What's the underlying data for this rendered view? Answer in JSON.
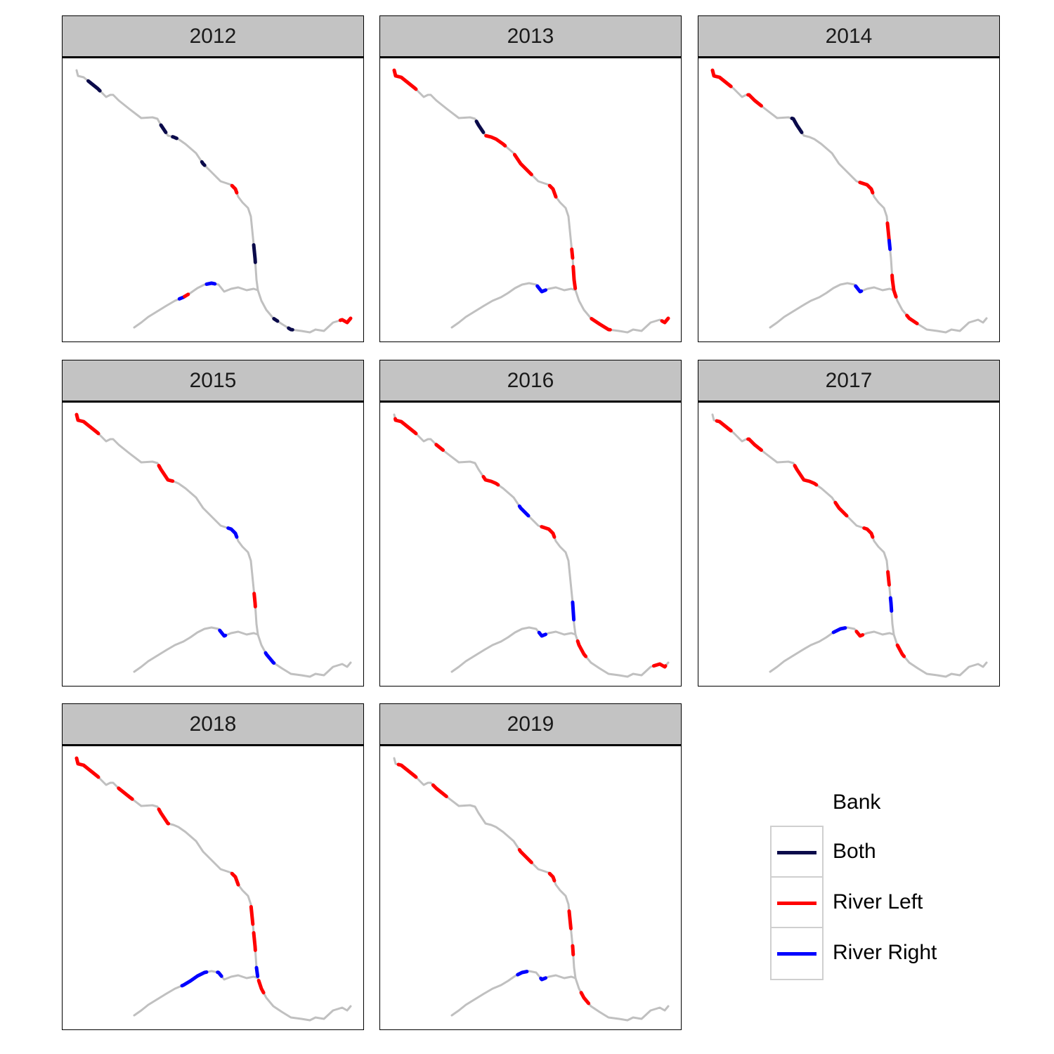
{
  "chart_data": {
    "type": "line",
    "description_of_encoding": "",
    "facets": [
      {
        "year": "2012",
        "segments": [
          {
            "reach": "main",
            "start": 0.04,
            "end": 0.075,
            "bank": "Both"
          },
          {
            "reach": "main",
            "start": 0.25,
            "end": 0.27,
            "bank": "Both"
          },
          {
            "reach": "main",
            "start": 0.29,
            "end": 0.3,
            "bank": "Both"
          },
          {
            "reach": "main",
            "start": 0.38,
            "end": 0.39,
            "bank": "Both"
          },
          {
            "reach": "main",
            "start": 0.47,
            "end": 0.49,
            "bank": "River Left"
          },
          {
            "reach": "main",
            "start": 0.62,
            "end": 0.66,
            "bank": "Both"
          },
          {
            "reach": "main",
            "start": 0.8,
            "end": 0.81,
            "bank": "Both"
          },
          {
            "reach": "main",
            "start": 0.84,
            "end": 0.85,
            "bank": "Both"
          },
          {
            "reach": "main",
            "start": 0.97,
            "end": 1.0,
            "bank": "River Left"
          },
          {
            "reach": "trib",
            "start": 0.38,
            "end": 0.42,
            "bank": "River Right"
          },
          {
            "reach": "trib",
            "start": 0.42,
            "end": 0.45,
            "bank": "River Left"
          },
          {
            "reach": "trib",
            "start": 0.6,
            "end": 0.66,
            "bank": "River Right"
          }
        ]
      },
      {
        "year": "2013",
        "segments": [
          {
            "reach": "main",
            "start": 0.0,
            "end": 0.07,
            "bank": "River Left"
          },
          {
            "reach": "main",
            "start": 0.24,
            "end": 0.27,
            "bank": "Both"
          },
          {
            "reach": "main",
            "start": 0.28,
            "end": 0.33,
            "bank": "River Left"
          },
          {
            "reach": "main",
            "start": 0.36,
            "end": 0.42,
            "bank": "River Left"
          },
          {
            "reach": "main",
            "start": 0.47,
            "end": 0.5,
            "bank": "River Left"
          },
          {
            "reach": "main",
            "start": 0.63,
            "end": 0.65,
            "bank": "River Left"
          },
          {
            "reach": "main",
            "start": 0.67,
            "end": 0.72,
            "bank": "River Left"
          },
          {
            "reach": "main",
            "start": 0.8,
            "end": 0.85,
            "bank": "River Left"
          },
          {
            "reach": "main",
            "start": 0.98,
            "end": 1.0,
            "bank": "River Left"
          },
          {
            "reach": "trib",
            "start": 0.7,
            "end": 0.78,
            "bank": "River Right"
          }
        ]
      },
      {
        "year": "2014",
        "segments": [
          {
            "reach": "main",
            "start": 0.0,
            "end": 0.06,
            "bank": "River Left"
          },
          {
            "reach": "main",
            "start": 0.11,
            "end": 0.15,
            "bank": "River Left"
          },
          {
            "reach": "main",
            "start": 0.23,
            "end": 0.27,
            "bank": "Both"
          },
          {
            "reach": "main",
            "start": 0.45,
            "end": 0.49,
            "bank": "River Left"
          },
          {
            "reach": "main",
            "start": 0.57,
            "end": 0.61,
            "bank": "River Left"
          },
          {
            "reach": "main",
            "start": 0.61,
            "end": 0.63,
            "bank": "River Right"
          },
          {
            "reach": "main",
            "start": 0.69,
            "end": 0.74,
            "bank": "River Left"
          },
          {
            "reach": "main",
            "start": 0.79,
            "end": 0.82,
            "bank": "River Left"
          },
          {
            "reach": "trib",
            "start": 0.7,
            "end": 0.76,
            "bank": "River Right"
          }
        ]
      },
      {
        "year": "2015",
        "segments": [
          {
            "reach": "main",
            "start": 0.0,
            "end": 0.07,
            "bank": "River Left"
          },
          {
            "reach": "main",
            "start": 0.24,
            "end": 0.29,
            "bank": "River Left"
          },
          {
            "reach": "main",
            "start": 0.46,
            "end": 0.49,
            "bank": "River Right"
          },
          {
            "reach": "main",
            "start": 0.63,
            "end": 0.66,
            "bank": "River Left"
          },
          {
            "reach": "main",
            "start": 0.77,
            "end": 0.8,
            "bank": "River Right"
          },
          {
            "reach": "trib",
            "start": 0.7,
            "end": 0.76,
            "bank": "River Right"
          }
        ]
      },
      {
        "year": "2016",
        "segments": [
          {
            "reach": "main",
            "start": 0.01,
            "end": 0.07,
            "bank": "River Left"
          },
          {
            "reach": "main",
            "start": 0.13,
            "end": 0.15,
            "bank": "River Left"
          },
          {
            "reach": "main",
            "start": 0.27,
            "end": 0.31,
            "bank": "River Left"
          },
          {
            "reach": "main",
            "start": 0.38,
            "end": 0.41,
            "bank": "River Right"
          },
          {
            "reach": "main",
            "start": 0.45,
            "end": 0.49,
            "bank": "River Left"
          },
          {
            "reach": "main",
            "start": 0.65,
            "end": 0.69,
            "bank": "River Right"
          },
          {
            "reach": "main",
            "start": 0.74,
            "end": 0.78,
            "bank": "River Left"
          },
          {
            "reach": "main",
            "start": 0.96,
            "end": 0.99,
            "bank": "River Left"
          },
          {
            "reach": "trib",
            "start": 0.72,
            "end": 0.78,
            "bank": "River Right"
          }
        ]
      },
      {
        "year": "2017",
        "segments": [
          {
            "reach": "main",
            "start": 0.02,
            "end": 0.06,
            "bank": "River Left"
          },
          {
            "reach": "main",
            "start": 0.11,
            "end": 0.15,
            "bank": "River Left"
          },
          {
            "reach": "main",
            "start": 0.24,
            "end": 0.31,
            "bank": "River Left"
          },
          {
            "reach": "main",
            "start": 0.37,
            "end": 0.41,
            "bank": "River Left"
          },
          {
            "reach": "main",
            "start": 0.46,
            "end": 0.49,
            "bank": "River Left"
          },
          {
            "reach": "main",
            "start": 0.58,
            "end": 0.61,
            "bank": "River Left"
          },
          {
            "reach": "main",
            "start": 0.64,
            "end": 0.67,
            "bank": "River Right"
          },
          {
            "reach": "main",
            "start": 0.75,
            "end": 0.78,
            "bank": "River Left"
          },
          {
            "reach": "trib",
            "start": 0.53,
            "end": 0.62,
            "bank": "River Right"
          },
          {
            "reach": "trib",
            "start": 0.71,
            "end": 0.77,
            "bank": "River Left"
          }
        ]
      },
      {
        "year": "2018",
        "segments": [
          {
            "reach": "main",
            "start": 0.0,
            "end": 0.07,
            "bank": "River Left"
          },
          {
            "reach": "main",
            "start": 0.13,
            "end": 0.17,
            "bank": "River Left"
          },
          {
            "reach": "main",
            "start": 0.24,
            "end": 0.28,
            "bank": "River Left"
          },
          {
            "reach": "main",
            "start": 0.47,
            "end": 0.5,
            "bank": "River Left"
          },
          {
            "reach": "main",
            "start": 0.56,
            "end": 0.6,
            "bank": "River Left"
          },
          {
            "reach": "main",
            "start": 0.62,
            "end": 0.66,
            "bank": "River Left"
          },
          {
            "reach": "main",
            "start": 0.7,
            "end": 0.72,
            "bank": "River Right"
          },
          {
            "reach": "main",
            "start": 0.73,
            "end": 0.76,
            "bank": "River Left"
          },
          {
            "reach": "trib",
            "start": 0.4,
            "end": 0.6,
            "bank": "River Right"
          },
          {
            "reach": "trib",
            "start": 0.68,
            "end": 0.72,
            "bank": "River Right"
          }
        ]
      },
      {
        "year": "2019",
        "segments": [
          {
            "reach": "main",
            "start": 0.02,
            "end": 0.07,
            "bank": "River Left"
          },
          {
            "reach": "main",
            "start": 0.12,
            "end": 0.16,
            "bank": "River Left"
          },
          {
            "reach": "main",
            "start": 0.38,
            "end": 0.42,
            "bank": "River Left"
          },
          {
            "reach": "main",
            "start": 0.47,
            "end": 0.49,
            "bank": "River Left"
          },
          {
            "reach": "main",
            "start": 0.57,
            "end": 0.61,
            "bank": "River Left"
          },
          {
            "reach": "main",
            "start": 0.65,
            "end": 0.67,
            "bank": "River Left"
          },
          {
            "reach": "main",
            "start": 0.76,
            "end": 0.79,
            "bank": "River Left"
          },
          {
            "reach": "trib",
            "start": 0.55,
            "end": 0.62,
            "bank": "River Right"
          },
          {
            "reach": "trib",
            "start": 0.74,
            "end": 0.78,
            "bank": "River Right"
          }
        ]
      }
    ],
    "legend": {
      "title": "Bank",
      "position": "bottom-right",
      "entries": [
        {
          "label": "Both",
          "color": "#0a0a4a"
        },
        {
          "label": "River Left",
          "color": "#ff0000"
        },
        {
          "label": "River Right",
          "color": "#0000ff"
        }
      ]
    },
    "river_color": "#c0c0c0",
    "grid": false
  }
}
